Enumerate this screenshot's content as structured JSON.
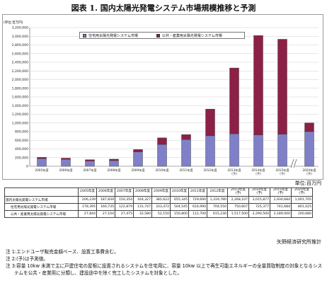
{
  "title": "図表 1. 国内太陽光発電システム市場規模推移と予測",
  "chart_data": {
    "type": "bar",
    "stacked": true,
    "unit_label": "(単位:百万円)",
    "categories": [
      "2005年度",
      "2006年度",
      "2007年度",
      "2008年度",
      "2009年度",
      "2010年度",
      "2011年度",
      "2012年度",
      "2013年度\n(予)",
      "2014年度\n(予)",
      "2015年度\n(予)",
      "2020年度\n(予)"
    ],
    "series": [
      {
        "name": "住宅用太陽光発電システム市場",
        "color": "#8080c8",
        "values": [
          178395,
          160735,
          122879,
          131747,
          333472,
          504545,
          616990,
          704550,
          750607,
          725377,
          741684,
          801025
        ]
      },
      {
        "name": "公共・産業用太陽光発電システム市場",
        "color": "#8b2146",
        "values": [
          27844,
          27104,
          27475,
          32580,
          52150,
          150800,
          112700,
          615230,
          1517500,
          2290500,
          2189000,
          200680
        ]
      }
    ],
    "ylim": [
      0,
      3200000
    ],
    "yticks": [
      "0",
      "200,000",
      "400,000",
      "600,000",
      "800,000",
      "1,000,000",
      "1,200,000",
      "1,400,000",
      "1,600,000",
      "1,800,000",
      "2,000,000",
      "2,200,000",
      "2,400,000",
      "2,600,000",
      "2,800,000",
      "3,000,000",
      "3,200,000"
    ],
    "grid": true,
    "legend_position": "top"
  },
  "table": {
    "unit_note": "単位:百万円",
    "headers": [
      "2005年度",
      "2006年度",
      "2007年度",
      "2008年度",
      "2009年度",
      "2010年度",
      "2011年度",
      "2012年度",
      "2013年度\n(予)",
      "2014年度\n(予)",
      "2015年度\n(予)",
      "2020年度\n(予)"
    ],
    "rows": [
      {
        "label": "国内太陽光発電システム市場",
        "values": [
          "206,239",
          "187,839",
          "150,354",
          "164,327",
          "385,622",
          "655,345",
          "729,690",
          "1,319,780",
          "2,268,107",
          "3,015,877",
          "2,930,684",
          "1,001,705"
        ]
      },
      {
        "label": "住宅用太陽光発電システム市場",
        "values": [
          "178,395",
          "160,735",
          "122,879",
          "131,747",
          "333,472",
          "504,545",
          "616,990",
          "704,550",
          "750,607",
          "725,377",
          "741,684",
          "801,025"
        ]
      },
      {
        "label": "公共・産業用太陽光発電システム市場",
        "values": [
          "27,844",
          "27,104",
          "27,475",
          "32,580",
          "52,150",
          "150,800",
          "112,700",
          "615,230",
          "1,517,500",
          "2,290,500",
          "2,189,000",
          "200,680"
        ]
      }
    ]
  },
  "source": "矢野経済研究所推計",
  "notes": [
    "注 1:エンドユーザ販売金額ベース、設置工事費含む。",
    "注 2:(予)は予測値。",
    "注 3:容量 10kw 未満で主に戸建住宅の屋根に設置されるシステムを住宅用に、容量 10kw 以上で再生可能エネルギーの全量買取制度の対象となるシステムを公共・産業用に分類し、建設途中を除く完工したシステムを対象とした。"
  ]
}
